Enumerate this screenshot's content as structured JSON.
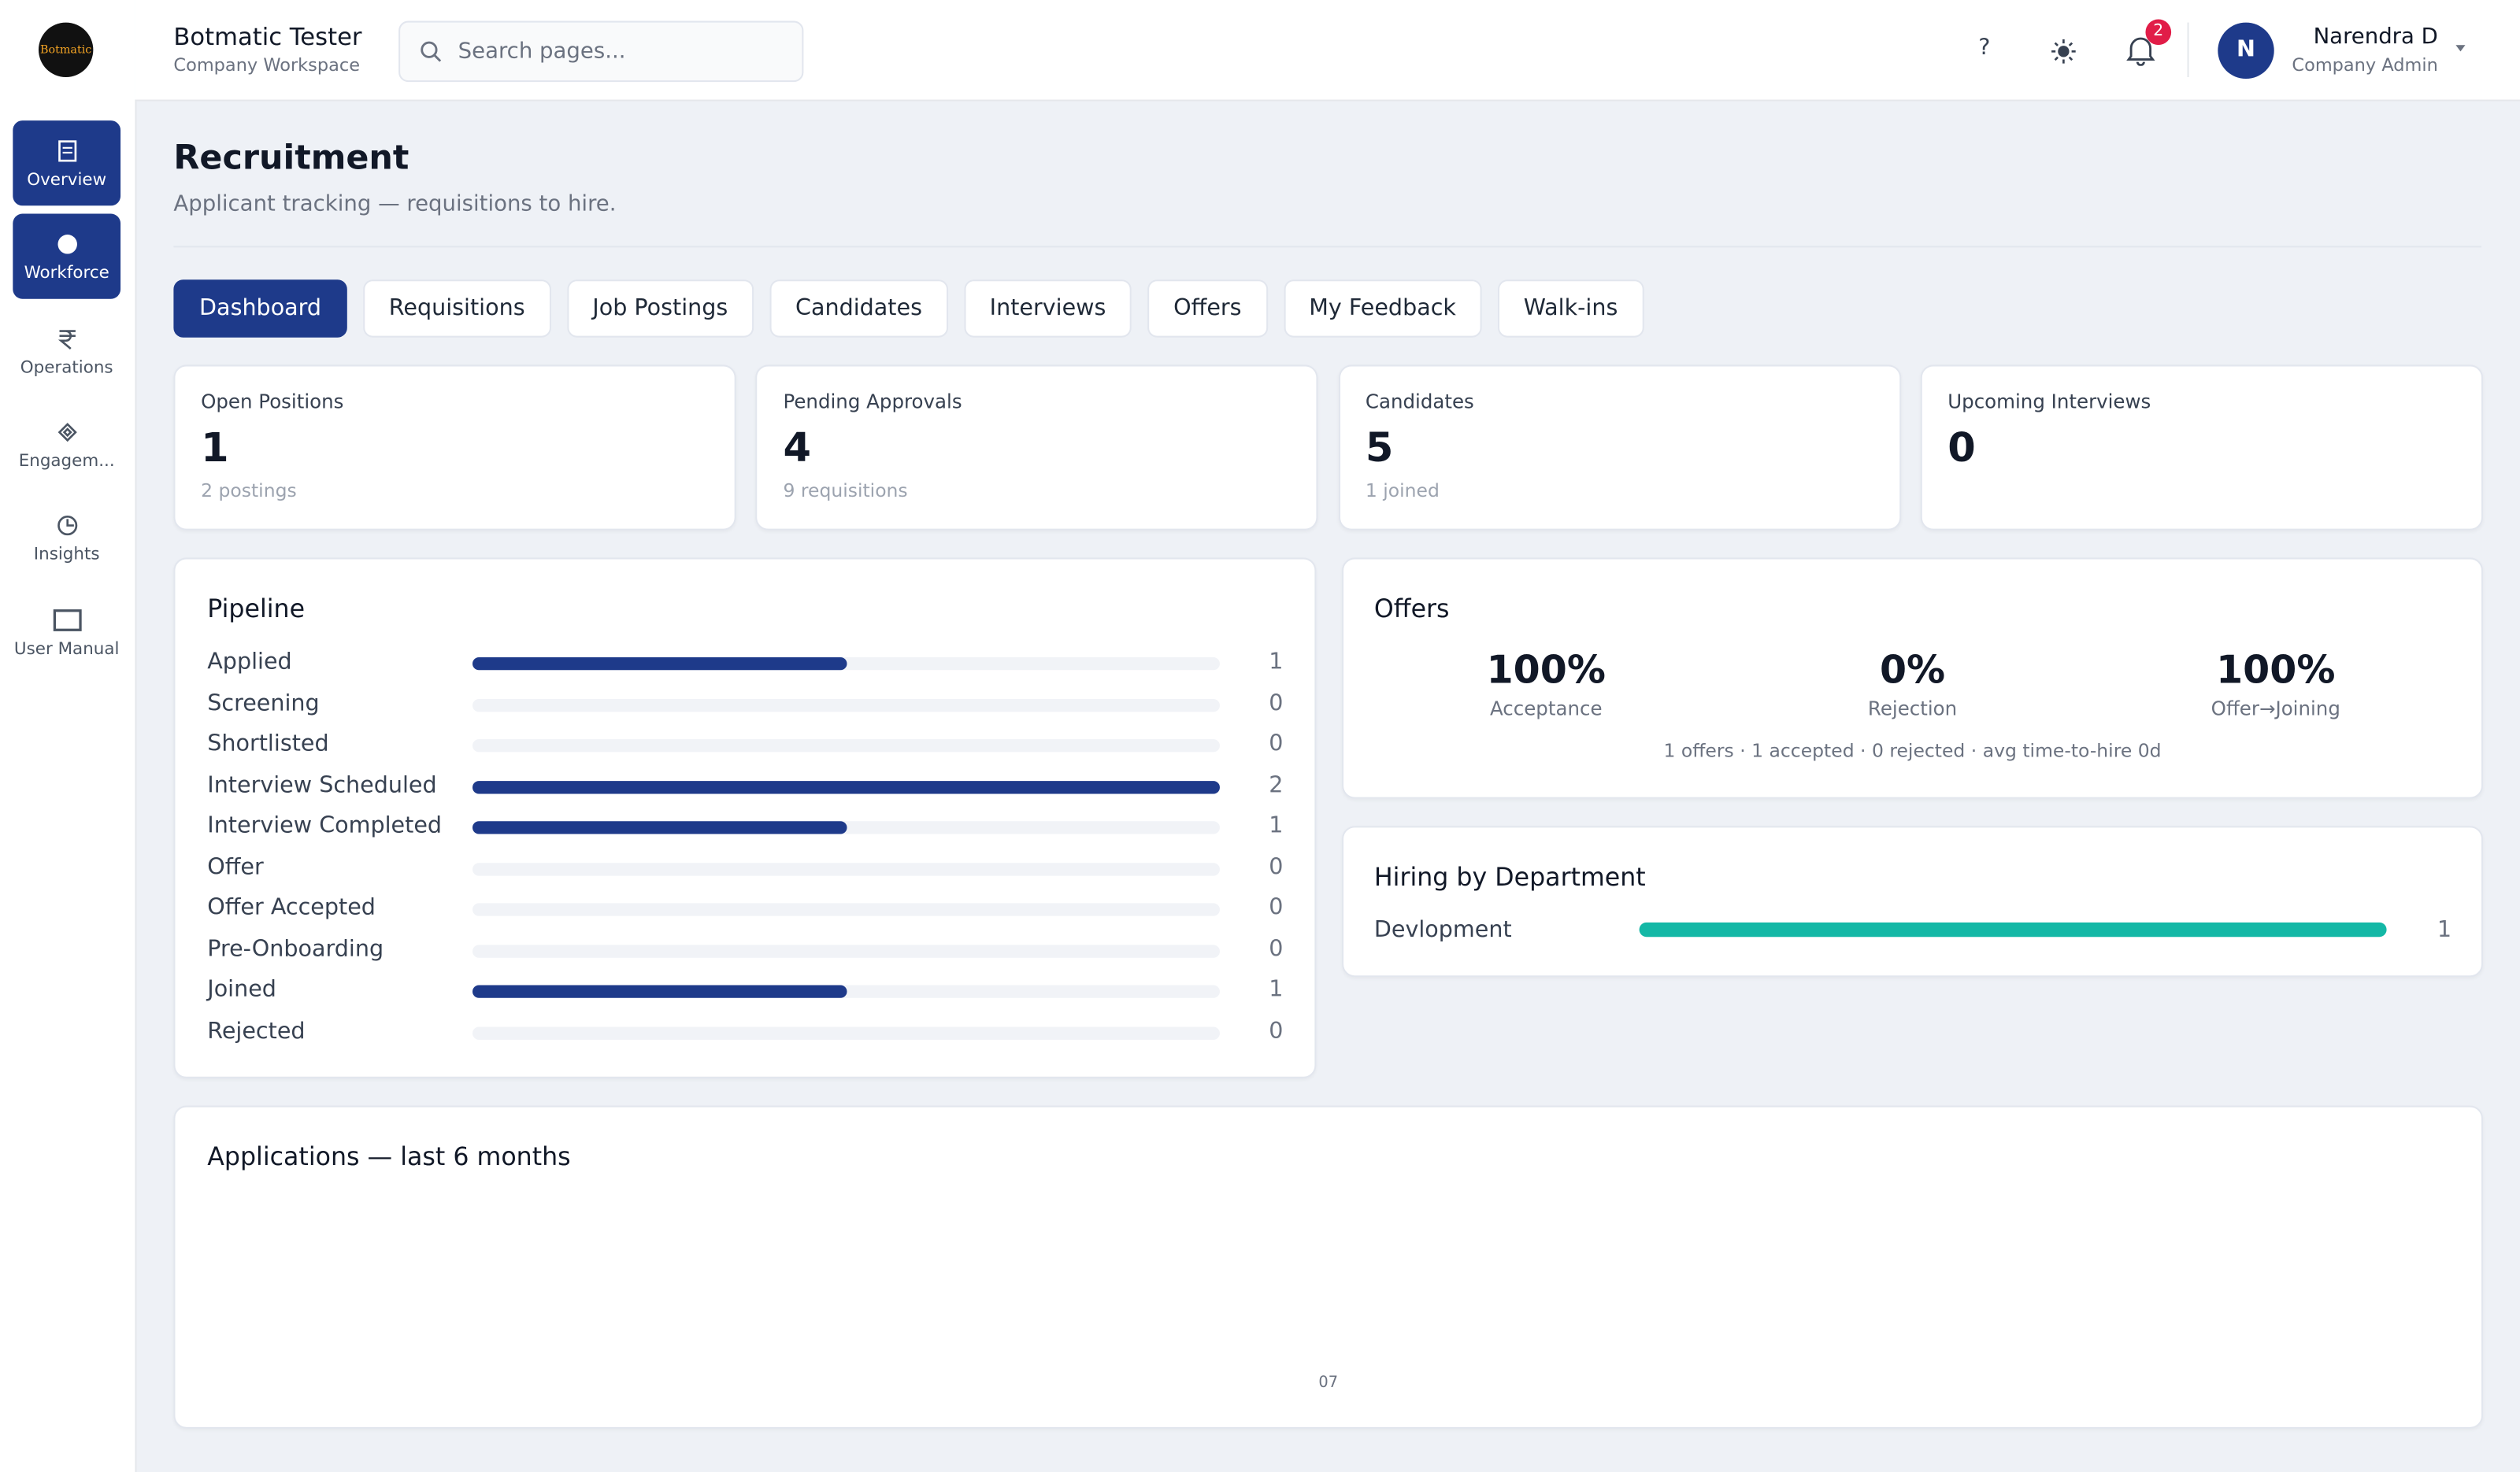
{
  "header": {
    "logo": "Botmatic",
    "title": "Botmatic Tester",
    "subtitle": "Company Workspace",
    "search_placeholder": "Search pages...",
    "help": "?",
    "notifications": "2",
    "avatar": "N",
    "user_name": "Narendra D",
    "user_role": "Company Admin"
  },
  "sidebar": [
    "Overview",
    "Workforce",
    "Operations",
    "Engagem...",
    "Insights",
    "User Manual"
  ],
  "page": {
    "title": "Recruitment",
    "subtitle": "Applicant tracking — requisitions to hire."
  },
  "tabs": [
    "Dashboard",
    "Requisitions",
    "Job Postings",
    "Candidates",
    "Interviews",
    "Offers",
    "My Feedback",
    "Walk-ins"
  ],
  "stats": [
    {
      "label": "Open Positions",
      "value": "1",
      "note": "2 postings"
    },
    {
      "label": "Pending Approvals",
      "value": "4",
      "note": "9 requisitions"
    },
    {
      "label": "Candidates",
      "value": "5",
      "note": "1 joined"
    },
    {
      "label": "Upcoming Interviews",
      "value": "0"
    }
  ],
  "pipeline": {
    "title": "Pipeline",
    "stages": [
      "Applied",
      "Screening",
      "Shortlisted",
      "Interview Scheduled",
      "Interview Completed",
      "Offer",
      "Offer Accepted",
      "Pre-Onboarding",
      "Joined",
      "Rejected"
    ],
    "values": [
      1,
      0,
      0,
      2,
      1,
      0,
      0,
      0,
      1,
      0
    ]
  },
  "offers": {
    "title": "Offers",
    "metrics": [
      {
        "value": "100%",
        "label": "Acceptance"
      },
      {
        "value": "0%",
        "label": "Rejection"
      },
      {
        "value": "100%",
        "label": "Offer→Joining"
      }
    ],
    "summary": "1 offers · 1 accepted · 0 rejected · avg time-to-hire 0d"
  },
  "hiring": {
    "title": "Hiring by Department",
    "departments": [
      "Devlopment"
    ],
    "values": [
      1
    ]
  },
  "applications": {
    "title": "Applications — last 6 months",
    "x_label": "07"
  }
}
